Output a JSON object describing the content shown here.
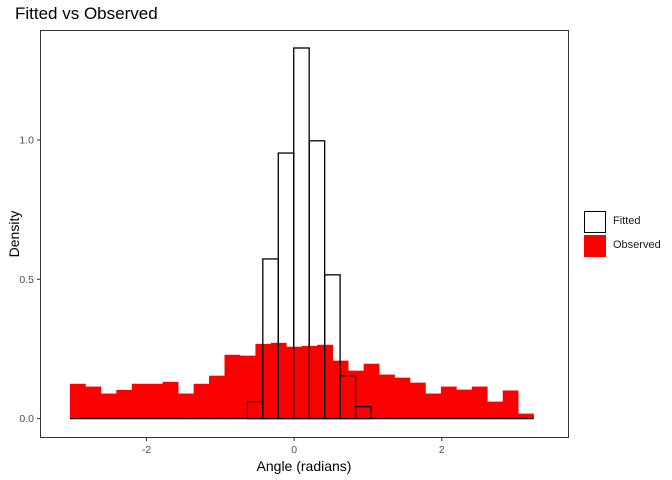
{
  "chart_data": {
    "type": "bar",
    "title": "Fitted vs Observed",
    "xlabel": "Angle (radians)",
    "ylabel": "Density",
    "xlim": [
      -3.43,
      3.71
    ],
    "ylim": [
      -0.066,
      1.391
    ],
    "x_ticks": [
      -2,
      0,
      2
    ],
    "x_tick_labels": [
      "-2",
      "0",
      "2"
    ],
    "y_ticks": [
      0.0,
      0.5,
      1.0
    ],
    "y_tick_labels": [
      "0.0",
      "0.5",
      "1.0"
    ],
    "grid": false,
    "legend_position": "right",
    "bin_width": 0.2094,
    "series": [
      {
        "name": "Observed",
        "style": "filled",
        "color": "#fc0000",
        "x_start": -3.0376,
        "values": [
          0.125,
          0.115,
          0.09,
          0.103,
          0.125,
          0.125,
          0.132,
          0.09,
          0.125,
          0.154,
          0.229,
          0.226,
          0.268,
          0.272,
          0.258,
          0.261,
          0.265,
          0.208,
          0.172,
          0.197,
          0.158,
          0.147,
          0.129,
          0.09,
          0.115,
          0.104,
          0.115,
          0.061,
          0.101,
          0.018
        ]
      },
      {
        "name": "Fitted",
        "style": "outline",
        "color": "#000000",
        "x_start": -0.6341,
        "values": [
          0.061,
          0.573,
          0.953,
          1.33,
          0.997,
          0.516,
          0.154,
          0.043
        ]
      }
    ]
  }
}
